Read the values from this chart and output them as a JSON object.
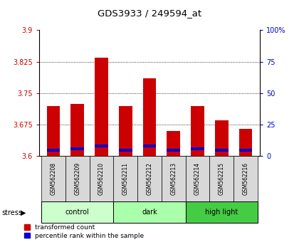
{
  "title": "GDS3933 / 249594_at",
  "samples": [
    "GSM562208",
    "GSM562209",
    "GSM562210",
    "GSM562211",
    "GSM562212",
    "GSM562213",
    "GSM562214",
    "GSM562215",
    "GSM562216"
  ],
  "red_values": [
    3.72,
    3.725,
    3.835,
    3.72,
    3.785,
    3.66,
    3.72,
    3.685,
    3.665
  ],
  "blue_percentile": [
    5,
    6,
    8,
    5,
    8,
    5,
    6,
    5,
    5
  ],
  "y_min": 3.6,
  "y_max": 3.9,
  "y_ticks": [
    3.6,
    3.675,
    3.75,
    3.825,
    3.9
  ],
  "right_y_ticks": [
    0,
    25,
    50,
    75,
    100
  ],
  "groups": [
    {
      "label": "control",
      "start": 0,
      "end": 3,
      "color": "#ccffcc"
    },
    {
      "label": "dark",
      "start": 3,
      "end": 6,
      "color": "#aaffaa"
    },
    {
      "label": "high light",
      "start": 6,
      "end": 9,
      "color": "#44cc44"
    }
  ],
  "stress_label": "stress",
  "legend_red": "transformed count",
  "legend_blue": "percentile rank within the sample",
  "red_color": "#cc0000",
  "blue_color": "#0000cc",
  "bar_width": 0.55
}
